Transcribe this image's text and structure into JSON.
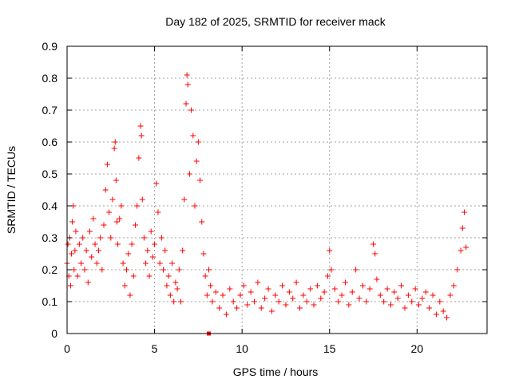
{
  "chart_data": {
    "type": "scatter",
    "title": "Day 182 of 2025, SRMTID for receiver mack",
    "xlabel": "GPS time / hours",
    "ylabel": "SRMTID / TECUs",
    "xlim": [
      0,
      24
    ],
    "ylim": [
      0,
      0.9
    ],
    "xticks": [
      0,
      5,
      10,
      15,
      20
    ],
    "xtick_labels": [
      "0",
      "5",
      "10",
      "15",
      "20"
    ],
    "yticks": [
      0,
      0.1,
      0.2,
      0.3,
      0.4,
      0.5,
      0.6,
      0.7,
      0.8,
      0.9
    ],
    "ytick_labels": [
      "0",
      "0.1",
      "0.2",
      "0.3",
      "0.4",
      "0.5",
      "0.6",
      "0.7",
      "0.8",
      "0.9"
    ],
    "grid": true,
    "marker": "+",
    "point_color": "#ff0000",
    "series": [
      {
        "name": "SRMTID",
        "color": "#ff0000",
        "x": [
          0.0,
          0.05,
          0.1,
          0.15,
          0.2,
          0.25,
          0.3,
          0.35,
          0.4,
          0.45,
          0.5,
          0.6,
          0.7,
          0.8,
          0.9,
          1.0,
          1.1,
          1.2,
          1.3,
          1.4,
          1.5,
          1.6,
          1.7,
          1.8,
          1.9,
          2.0,
          2.1,
          2.2,
          2.3,
          2.4,
          2.5,
          2.6,
          2.7,
          2.75,
          2.8,
          2.85,
          2.9,
          3.0,
          3.1,
          3.2,
          3.3,
          3.4,
          3.5,
          3.6,
          3.7,
          3.8,
          3.9,
          4.0,
          4.1,
          4.2,
          4.25,
          4.3,
          4.4,
          4.5,
          4.6,
          4.7,
          4.8,
          4.9,
          5.0,
          5.1,
          5.2,
          5.3,
          5.4,
          5.5,
          5.6,
          5.7,
          5.8,
          5.9,
          6.0,
          6.1,
          6.2,
          6.3,
          6.4,
          6.5,
          6.6,
          6.7,
          6.8,
          6.85,
          6.9,
          7.0,
          7.1,
          7.2,
          7.3,
          7.4,
          7.5,
          7.6,
          7.7,
          7.8,
          7.9,
          8.0,
          8.1,
          8.2,
          8.3,
          8.5,
          8.7,
          8.9,
          9.1,
          9.3,
          9.5,
          9.7,
          9.9,
          10.1,
          10.3,
          10.5,
          10.7,
          10.9,
          11.1,
          11.3,
          11.5,
          11.7,
          11.9,
          12.1,
          12.3,
          12.5,
          12.7,
          12.9,
          13.1,
          13.3,
          13.5,
          13.7,
          13.9,
          14.1,
          14.3,
          14.5,
          14.7,
          14.9,
          15.0,
          15.1,
          15.3,
          15.5,
          15.7,
          15.9,
          16.1,
          16.3,
          16.5,
          16.7,
          16.9,
          17.1,
          17.3,
          17.5,
          17.6,
          17.7,
          17.9,
          18.1,
          18.3,
          18.5,
          18.7,
          18.9,
          19.1,
          19.3,
          19.5,
          19.7,
          19.9,
          20.1,
          20.3,
          20.5,
          20.7,
          20.9,
          21.1,
          21.3,
          21.5,
          21.7,
          21.9,
          22.1,
          22.3,
          22.5,
          22.6,
          22.7,
          22.8
        ],
        "y": [
          0.22,
          0.28,
          0.18,
          0.3,
          0.15,
          0.25,
          0.35,
          0.4,
          0.2,
          0.26,
          0.32,
          0.18,
          0.28,
          0.22,
          0.3,
          0.2,
          0.26,
          0.16,
          0.32,
          0.24,
          0.36,
          0.28,
          0.22,
          0.26,
          0.3,
          0.2,
          0.34,
          0.45,
          0.53,
          0.38,
          0.3,
          0.42,
          0.58,
          0.6,
          0.48,
          0.35,
          0.28,
          0.36,
          0.4,
          0.22,
          0.15,
          0.2,
          0.25,
          0.12,
          0.28,
          0.18,
          0.34,
          0.4,
          0.55,
          0.65,
          0.62,
          0.42,
          0.3,
          0.22,
          0.26,
          0.18,
          0.32,
          0.24,
          0.28,
          0.47,
          0.38,
          0.22,
          0.3,
          0.2,
          0.26,
          0.15,
          0.18,
          0.12,
          0.22,
          0.1,
          0.16,
          0.14,
          0.2,
          0.1,
          0.26,
          0.42,
          0.72,
          0.81,
          0.78,
          0.5,
          0.7,
          0.62,
          0.4,
          0.54,
          0.6,
          0.48,
          0.35,
          0.25,
          0.18,
          0.12,
          0.2,
          0.15,
          0.1,
          0.13,
          0.08,
          0.12,
          0.06,
          0.14,
          0.1,
          0.08,
          0.12,
          0.15,
          0.09,
          0.13,
          0.1,
          0.16,
          0.08,
          0.11,
          0.14,
          0.07,
          0.12,
          0.1,
          0.15,
          0.09,
          0.13,
          0.11,
          0.16,
          0.08,
          0.12,
          0.1,
          0.14,
          0.09,
          0.15,
          0.11,
          0.13,
          0.18,
          0.26,
          0.2,
          0.14,
          0.1,
          0.12,
          0.16,
          0.09,
          0.13,
          0.2,
          0.11,
          0.15,
          0.1,
          0.14,
          0.28,
          0.25,
          0.17,
          0.12,
          0.1,
          0.14,
          0.09,
          0.13,
          0.11,
          0.15,
          0.08,
          0.12,
          0.1,
          0.14,
          0.09,
          0.11,
          0.13,
          0.08,
          0.12,
          0.06,
          0.1,
          0.07,
          0.05,
          0.12,
          0.15,
          0.2,
          0.26,
          0.33,
          0.38,
          0.27
        ]
      }
    ]
  }
}
